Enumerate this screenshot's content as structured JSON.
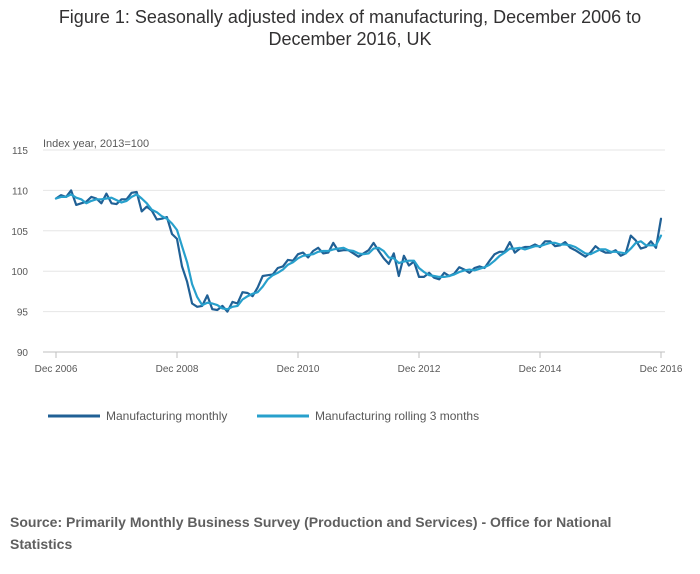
{
  "title": "Figure 1: Seasonally adjusted index of manufacturing, December 2006 to December 2016, UK",
  "source": "Source: Primarily Monthly Business Survey (Production and Services) - Office for National Statistics",
  "colors": {
    "monthly": "#206095",
    "rolling": "#27a0cc",
    "grid": "#e6e6e6",
    "axis": "#bfbfbf",
    "text": "#595959"
  },
  "chart_data": {
    "type": "line",
    "title": "Figure 1: Seasonally adjusted index of manufacturing, December 2006 to December 2016, UK",
    "ylabel": "Index year, 2013=100",
    "xlabel": "",
    "ylim": [
      90,
      115
    ],
    "yticks": [
      90,
      95,
      100,
      105,
      110,
      115
    ],
    "xlim": [
      0,
      120
    ],
    "xticks": [
      {
        "label": "Dec 2006",
        "x": 0
      },
      {
        "label": "Dec 2008",
        "x": 24
      },
      {
        "label": "Dec 2010",
        "x": 48
      },
      {
        "label": "Dec 2012",
        "x": 72
      },
      {
        "label": "Dec 2014",
        "x": 96
      },
      {
        "label": "Dec 2016",
        "x": 120
      }
    ],
    "legend": [
      "Manufacturing monthly",
      "Manufacturing rolling 3 months"
    ],
    "legend_position": "bottom-left",
    "series": [
      {
        "name": "Manufacturing monthly",
        "color": "#206095",
        "points": [
          [
            0,
            109.0
          ],
          [
            1,
            109.4
          ],
          [
            2,
            109.2
          ],
          [
            3,
            110.0
          ],
          [
            4,
            108.2
          ],
          [
            5,
            108.4
          ],
          [
            6,
            108.6
          ],
          [
            7,
            109.2
          ],
          [
            8,
            109.0
          ],
          [
            9,
            108.4
          ],
          [
            10,
            109.6
          ],
          [
            11,
            108.4
          ],
          [
            12,
            108.3
          ],
          [
            13,
            108.9
          ],
          [
            14,
            108.9
          ],
          [
            15,
            109.7
          ],
          [
            16,
            109.8
          ],
          [
            17,
            107.4
          ],
          [
            18,
            108.0
          ],
          [
            19,
            107.5
          ],
          [
            20,
            106.4
          ],
          [
            21,
            106.5
          ],
          [
            22,
            106.7
          ],
          [
            23,
            104.6
          ],
          [
            24,
            104.0
          ],
          [
            25,
            100.6
          ],
          [
            26,
            98.7
          ],
          [
            27,
            96.0
          ],
          [
            28,
            95.6
          ],
          [
            29,
            95.7
          ],
          [
            30,
            97.0
          ],
          [
            31,
            95.3
          ],
          [
            32,
            95.2
          ],
          [
            33,
            95.7
          ],
          [
            34,
            95.0
          ],
          [
            35,
            96.2
          ],
          [
            36,
            96.0
          ],
          [
            37,
            97.4
          ],
          [
            38,
            97.3
          ],
          [
            39,
            96.9
          ],
          [
            40,
            98.0
          ],
          [
            41,
            99.4
          ],
          [
            42,
            99.5
          ],
          [
            43,
            99.6
          ],
          [
            44,
            100.4
          ],
          [
            45,
            100.6
          ],
          [
            46,
            101.4
          ],
          [
            47,
            101.3
          ],
          [
            48,
            102.1
          ],
          [
            49,
            102.3
          ],
          [
            50,
            101.7
          ],
          [
            51,
            102.5
          ],
          [
            52,
            102.9
          ],
          [
            53,
            102.2
          ],
          [
            54,
            102.3
          ],
          [
            55,
            103.5
          ],
          [
            56,
            102.5
          ],
          [
            57,
            102.6
          ],
          [
            58,
            102.6
          ],
          [
            59,
            102.2
          ],
          [
            60,
            101.8
          ],
          [
            61,
            102.2
          ],
          [
            62,
            102.6
          ],
          [
            63,
            103.5
          ],
          [
            64,
            102.5
          ],
          [
            65,
            101.6
          ],
          [
            66,
            100.9
          ],
          [
            67,
            102.2
          ],
          [
            68,
            99.4
          ],
          [
            69,
            101.9
          ],
          [
            70,
            100.7
          ],
          [
            71,
            101.2
          ],
          [
            72,
            99.3
          ],
          [
            73,
            99.3
          ],
          [
            74,
            99.8
          ],
          [
            75,
            99.2
          ],
          [
            76,
            99.0
          ],
          [
            77,
            99.8
          ],
          [
            78,
            99.4
          ],
          [
            79,
            99.7
          ],
          [
            80,
            100.5
          ],
          [
            81,
            100.2
          ],
          [
            82,
            99.8
          ],
          [
            83,
            100.4
          ],
          [
            84,
            100.6
          ],
          [
            85,
            100.4
          ],
          [
            86,
            101.3
          ],
          [
            87,
            102.1
          ],
          [
            88,
            102.4
          ],
          [
            89,
            102.4
          ],
          [
            90,
            103.6
          ],
          [
            91,
            102.3
          ],
          [
            92,
            102.8
          ],
          [
            93,
            103.0
          ],
          [
            94,
            103.0
          ],
          [
            95,
            103.3
          ],
          [
            96,
            103.0
          ],
          [
            97,
            103.7
          ],
          [
            98,
            103.7
          ],
          [
            99,
            103.1
          ],
          [
            100,
            103.2
          ],
          [
            101,
            103.6
          ],
          [
            102,
            102.9
          ],
          [
            103,
            102.6
          ],
          [
            104,
            102.2
          ],
          [
            105,
            101.8
          ],
          [
            106,
            102.3
          ],
          [
            107,
            103.1
          ],
          [
            108,
            102.6
          ],
          [
            109,
            102.3
          ],
          [
            110,
            102.3
          ],
          [
            111,
            102.6
          ],
          [
            112,
            101.9
          ],
          [
            113,
            102.2
          ],
          [
            114,
            104.4
          ],
          [
            115,
            103.8
          ],
          [
            116,
            102.8
          ],
          [
            117,
            103.0
          ],
          [
            118,
            103.7
          ],
          [
            119,
            102.9
          ],
          [
            120,
            106.5
          ]
        ]
      },
      {
        "name": "Manufacturing rolling 3 months",
        "color": "#27a0cc",
        "points": [
          [
            0,
            109.0
          ],
          [
            1,
            109.2
          ],
          [
            2,
            109.2
          ],
          [
            3,
            109.5
          ],
          [
            4,
            109.1
          ],
          [
            5,
            108.9
          ],
          [
            6,
            108.4
          ],
          [
            7,
            108.7
          ],
          [
            8,
            108.9
          ],
          [
            9,
            108.9
          ],
          [
            10,
            109.0
          ],
          [
            11,
            109.1
          ],
          [
            12,
            108.8
          ],
          [
            13,
            108.5
          ],
          [
            14,
            108.7
          ],
          [
            15,
            109.2
          ],
          [
            16,
            109.5
          ],
          [
            17,
            109.0
          ],
          [
            18,
            108.4
          ],
          [
            19,
            107.6
          ],
          [
            20,
            107.3
          ],
          [
            21,
            106.8
          ],
          [
            22,
            106.5
          ],
          [
            23,
            105.9
          ],
          [
            24,
            105.1
          ],
          [
            25,
            103.1
          ],
          [
            26,
            101.1
          ],
          [
            27,
            98.4
          ],
          [
            28,
            96.8
          ],
          [
            29,
            95.8
          ],
          [
            30,
            96.1
          ],
          [
            31,
            96.0
          ],
          [
            32,
            95.8
          ],
          [
            33,
            95.4
          ],
          [
            34,
            95.3
          ],
          [
            35,
            95.6
          ],
          [
            36,
            95.7
          ],
          [
            37,
            96.5
          ],
          [
            38,
            96.9
          ],
          [
            39,
            97.2
          ],
          [
            40,
            97.4
          ],
          [
            41,
            98.1
          ],
          [
            42,
            99.0
          ],
          [
            43,
            99.5
          ],
          [
            44,
            99.8
          ],
          [
            45,
            100.2
          ],
          [
            46,
            100.8
          ],
          [
            47,
            101.1
          ],
          [
            48,
            101.6
          ],
          [
            49,
            101.9
          ],
          [
            50,
            102.0
          ],
          [
            51,
            102.1
          ],
          [
            52,
            102.4
          ],
          [
            53,
            102.5
          ],
          [
            54,
            102.5
          ],
          [
            55,
            102.7
          ],
          [
            56,
            102.8
          ],
          [
            57,
            102.9
          ],
          [
            58,
            102.6
          ],
          [
            59,
            102.5
          ],
          [
            60,
            102.2
          ],
          [
            61,
            102.1
          ],
          [
            62,
            102.2
          ],
          [
            63,
            102.8
          ],
          [
            64,
            102.9
          ],
          [
            65,
            102.5
          ],
          [
            66,
            101.7
          ],
          [
            67,
            101.6
          ],
          [
            68,
            101.0
          ],
          [
            69,
            101.2
          ],
          [
            70,
            101.3
          ],
          [
            71,
            101.3
          ],
          [
            72,
            100.4
          ],
          [
            73,
            99.9
          ],
          [
            74,
            99.5
          ],
          [
            75,
            99.4
          ],
          [
            76,
            99.3
          ],
          [
            77,
            99.3
          ],
          [
            78,
            99.4
          ],
          [
            79,
            99.6
          ],
          [
            80,
            99.9
          ],
          [
            81,
            100.1
          ],
          [
            82,
            100.2
          ],
          [
            83,
            100.1
          ],
          [
            84,
            100.3
          ],
          [
            85,
            100.5
          ],
          [
            86,
            100.8
          ],
          [
            87,
            101.3
          ],
          [
            88,
            101.9
          ],
          [
            89,
            102.3
          ],
          [
            90,
            102.8
          ],
          [
            91,
            102.8
          ],
          [
            92,
            102.9
          ],
          [
            93,
            102.7
          ],
          [
            94,
            102.9
          ],
          [
            95,
            103.1
          ],
          [
            96,
            103.1
          ],
          [
            97,
            103.3
          ],
          [
            98,
            103.5
          ],
          [
            99,
            103.5
          ],
          [
            100,
            103.3
          ],
          [
            101,
            103.3
          ],
          [
            102,
            103.2
          ],
          [
            103,
            103.0
          ],
          [
            104,
            102.6
          ],
          [
            105,
            102.2
          ],
          [
            106,
            102.1
          ],
          [
            107,
            102.4
          ],
          [
            108,
            102.7
          ],
          [
            109,
            102.7
          ],
          [
            110,
            102.4
          ],
          [
            111,
            102.4
          ],
          [
            112,
            102.3
          ],
          [
            113,
            102.2
          ],
          [
            114,
            102.8
          ],
          [
            115,
            103.5
          ],
          [
            116,
            103.7
          ],
          [
            117,
            103.2
          ],
          [
            118,
            103.2
          ],
          [
            119,
            103.2
          ],
          [
            120,
            104.4
          ]
        ]
      }
    ]
  }
}
